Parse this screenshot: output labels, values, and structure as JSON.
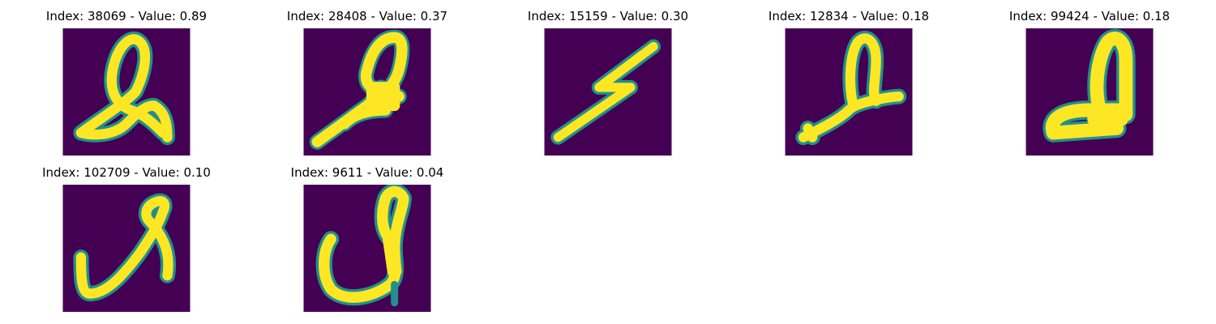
{
  "colors": {
    "background": "#440154",
    "mid": "#21908d",
    "stroke": "#fde725",
    "page": "#ffffff"
  },
  "panels": [
    {
      "title": "Index: 38069 - Value: 0.89"
    },
    {
      "title": "Index: 28408 - Value: 0.37"
    },
    {
      "title": "Index: 15159 - Value: 0.30"
    },
    {
      "title": "Index: 12834 - Value: 0.18"
    },
    {
      "title": "Index: 99424 - Value: 0.18"
    },
    {
      "title": "Index: 102709 - Value: 0.10"
    },
    {
      "title": "Index: 9611 - Value: 0.04"
    }
  ]
}
